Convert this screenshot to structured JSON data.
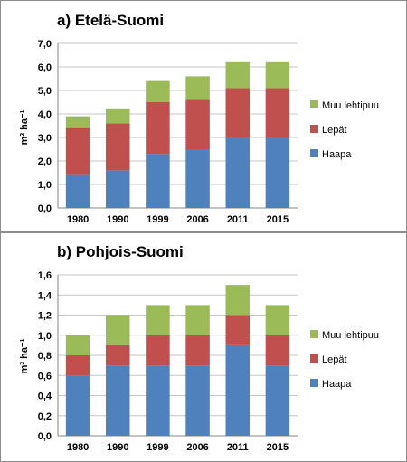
{
  "colors": {
    "Haapa": "#4f81bd",
    "Lepät": "#c0504d",
    "Muu lehtipuu": "#9bbb59"
  },
  "chart_data": [
    {
      "type": "bar",
      "stacked": true,
      "title": "a) Etelä-Suomi",
      "ylabel": "m³ ha⁻¹",
      "ylim": [
        0,
        7
      ],
      "yticks": [
        "0,0",
        "1,0",
        "2,0",
        "3,0",
        "4,0",
        "5,0",
        "6,0",
        "7,0"
      ],
      "categories": [
        "1980",
        "1990",
        "1999",
        "2006",
        "2011",
        "2015"
      ],
      "series": [
        {
          "name": "Haapa",
          "values": [
            1.4,
            1.6,
            2.3,
            2.5,
            3.0,
            3.0
          ]
        },
        {
          "name": "Lepät",
          "values": [
            2.0,
            2.0,
            2.2,
            2.1,
            2.1,
            2.1
          ]
        },
        {
          "name": "Muu lehtipuu",
          "values": [
            0.5,
            0.6,
            0.9,
            1.0,
            1.1,
            1.1
          ]
        }
      ],
      "legend_position": "right",
      "grid": true
    },
    {
      "type": "bar",
      "stacked": true,
      "title": "b) Pohjois-Suomi",
      "ylabel": "m³ ha⁻¹",
      "ylim": [
        0,
        1.6
      ],
      "yticks": [
        "0,0",
        "0,2",
        "0,4",
        "0,6",
        "0,8",
        "1,0",
        "1,2",
        "1,4",
        "1,6"
      ],
      "categories": [
        "1980",
        "1990",
        "1999",
        "2006",
        "2011",
        "2015"
      ],
      "series": [
        {
          "name": "Haapa",
          "values": [
            0.6,
            0.7,
            0.7,
            0.7,
            0.9,
            0.7
          ]
        },
        {
          "name": "Lepät",
          "values": [
            0.2,
            0.2,
            0.3,
            0.3,
            0.3,
            0.3
          ]
        },
        {
          "name": "Muu lehtipuu",
          "values": [
            0.2,
            0.3,
            0.3,
            0.3,
            0.3,
            0.3
          ]
        }
      ],
      "legend_position": "right",
      "grid": true
    }
  ]
}
